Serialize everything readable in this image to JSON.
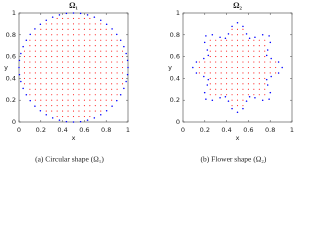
{
  "chart_data": [
    {
      "type": "scatter",
      "title": "Ω₁",
      "xlabel": "x",
      "ylabel": "y",
      "caption": "(a) Circular shape (Ω₁)",
      "xlim": [
        0,
        1
      ],
      "ylim": [
        0,
        1
      ],
      "xticks": [
        0,
        0.2,
        0.4,
        0.6,
        0.8,
        1
      ],
      "yticks": [
        0,
        0.2,
        0.4,
        0.6,
        0.8,
        1
      ],
      "series": [
        {
          "color": "#ff0000",
          "rows": [
            {
              "y": 0.05,
              "x": [
                0.35,
                0.4,
                0.45,
                0.5,
                0.55,
                0.6,
                0.65
              ]
            },
            {
              "y": 0.1,
              "x": [
                0.25,
                0.3,
                0.35,
                0.4,
                0.45,
                0.5,
                0.55,
                0.6,
                0.65,
                0.7,
                0.75
              ]
            },
            {
              "y": 0.15,
              "x": [
                0.2,
                0.25,
                0.3,
                0.35,
                0.4,
                0.45,
                0.5,
                0.55,
                0.6,
                0.65,
                0.7,
                0.75,
                0.8
              ]
            },
            {
              "y": 0.2,
              "x": [
                0.15,
                0.2,
                0.25,
                0.3,
                0.35,
                0.4,
                0.45,
                0.5,
                0.55,
                0.6,
                0.65,
                0.7,
                0.75,
                0.8,
                0.85
              ]
            },
            {
              "y": 0.25,
              "x": [
                0.1,
                0.15,
                0.2,
                0.25,
                0.3,
                0.35,
                0.4,
                0.45,
                0.5,
                0.55,
                0.6,
                0.65,
                0.7,
                0.75,
                0.8,
                0.85,
                0.9
              ]
            },
            {
              "y": 0.3,
              "x": [
                0.1,
                0.15,
                0.2,
                0.25,
                0.3,
                0.35,
                0.4,
                0.45,
                0.5,
                0.55,
                0.6,
                0.65,
                0.7,
                0.75,
                0.8,
                0.85,
                0.9
              ]
            },
            {
              "y": 0.35,
              "x": [
                0.05,
                0.1,
                0.15,
                0.2,
                0.25,
                0.3,
                0.35,
                0.4,
                0.45,
                0.5,
                0.55,
                0.6,
                0.65,
                0.7,
                0.75,
                0.8,
                0.85,
                0.9,
                0.95
              ]
            },
            {
              "y": 0.4,
              "x": [
                0.05,
                0.1,
                0.15,
                0.2,
                0.25,
                0.3,
                0.35,
                0.4,
                0.45,
                0.5,
                0.55,
                0.6,
                0.65,
                0.7,
                0.75,
                0.8,
                0.85,
                0.9,
                0.95
              ]
            },
            {
              "y": 0.45,
              "x": [
                0.05,
                0.1,
                0.15,
                0.2,
                0.25,
                0.3,
                0.35,
                0.4,
                0.45,
                0.5,
                0.55,
                0.6,
                0.65,
                0.7,
                0.75,
                0.8,
                0.85,
                0.9,
                0.95
              ]
            },
            {
              "y": 0.5,
              "x": [
                0.05,
                0.1,
                0.15,
                0.2,
                0.25,
                0.3,
                0.35,
                0.4,
                0.45,
                0.5,
                0.55,
                0.6,
                0.65,
                0.7,
                0.75,
                0.8,
                0.85,
                0.9,
                0.95
              ]
            },
            {
              "y": 0.55,
              "x": [
                0.05,
                0.1,
                0.15,
                0.2,
                0.25,
                0.3,
                0.35,
                0.4,
                0.45,
                0.5,
                0.55,
                0.6,
                0.65,
                0.7,
                0.75,
                0.8,
                0.85,
                0.9,
                0.95
              ]
            },
            {
              "y": 0.6,
              "x": [
                0.05,
                0.1,
                0.15,
                0.2,
                0.25,
                0.3,
                0.35,
                0.4,
                0.45,
                0.5,
                0.55,
                0.6,
                0.65,
                0.7,
                0.75,
                0.8,
                0.85,
                0.9,
                0.95
              ]
            },
            {
              "y": 0.65,
              "x": [
                0.05,
                0.1,
                0.15,
                0.2,
                0.25,
                0.3,
                0.35,
                0.4,
                0.45,
                0.5,
                0.55,
                0.6,
                0.65,
                0.7,
                0.75,
                0.8,
                0.85,
                0.9,
                0.95
              ]
            },
            {
              "y": 0.7,
              "x": [
                0.1,
                0.15,
                0.2,
                0.25,
                0.3,
                0.35,
                0.4,
                0.45,
                0.5,
                0.55,
                0.6,
                0.65,
                0.7,
                0.75,
                0.8,
                0.85,
                0.9
              ]
            },
            {
              "y": 0.75,
              "x": [
                0.1,
                0.15,
                0.2,
                0.25,
                0.3,
                0.35,
                0.4,
                0.45,
                0.5,
                0.55,
                0.6,
                0.65,
                0.7,
                0.75,
                0.8,
                0.85,
                0.9
              ]
            },
            {
              "y": 0.8,
              "x": [
                0.15,
                0.2,
                0.25,
                0.3,
                0.35,
                0.4,
                0.45,
                0.5,
                0.55,
                0.6,
                0.65,
                0.7,
                0.75,
                0.8,
                0.85
              ]
            },
            {
              "y": 0.85,
              "x": [
                0.2,
                0.25,
                0.3,
                0.35,
                0.4,
                0.45,
                0.5,
                0.55,
                0.6,
                0.65,
                0.7,
                0.75,
                0.8
              ]
            },
            {
              "y": 0.9,
              "x": [
                0.25,
                0.3,
                0.35,
                0.4,
                0.45,
                0.5,
                0.55,
                0.6,
                0.65,
                0.7,
                0.75
              ]
            },
            {
              "y": 0.95,
              "x": [
                0.35,
                0.4,
                0.45,
                0.5,
                0.55,
                0.6,
                0.65
              ]
            }
          ]
        },
        {
          "color": "#0000ff",
          "x": [
            1,
            0.996,
            0.983,
            0.962,
            0.933,
            0.897,
            0.854,
            0.804,
            0.75,
            0.691,
            0.629,
            0.565,
            0.5,
            0.435,
            0.371,
            0.309,
            0.25,
            0.196,
            0.146,
            0.103,
            0.067,
            0.038,
            0.017,
            0.004,
            0,
            0.004,
            0.017,
            0.038,
            0.067,
            0.103,
            0.146,
            0.196,
            0.25,
            0.309,
            0.371,
            0.435,
            0.5,
            0.565,
            0.629,
            0.691,
            0.75,
            0.804,
            0.854,
            0.897,
            0.933,
            0.962,
            0.983,
            0.996
          ],
          "values": [
            0.5,
            0.565,
            0.629,
            0.691,
            0.75,
            0.804,
            0.854,
            0.897,
            0.933,
            0.962,
            0.983,
            0.996,
            1,
            0.996,
            0.983,
            0.962,
            0.933,
            0.897,
            0.854,
            0.804,
            0.75,
            0.691,
            0.629,
            0.565,
            0.5,
            0.435,
            0.371,
            0.309,
            0.25,
            0.196,
            0.146,
            0.103,
            0.067,
            0.038,
            0.017,
            0.004,
            0,
            0.004,
            0.017,
            0.038,
            0.067,
            0.103,
            0.146,
            0.196,
            0.25,
            0.309,
            0.371,
            0.435
          ]
        }
      ]
    },
    {
      "type": "scatter",
      "title": "Ω₂",
      "xlabel": "x",
      "ylabel": "y",
      "caption": "(b) Flower shape (Ω₂)",
      "xlim": [
        0,
        1
      ],
      "ylim": [
        0,
        1
      ],
      "xticks": [
        0,
        0.2,
        0.4,
        0.6,
        0.8,
        1
      ],
      "yticks": [
        0,
        0.2,
        0.4,
        0.6,
        0.8,
        1
      ],
      "series": [
        {
          "color": "#ff0000",
          "rows": [
            {
              "y": 0.15,
              "x": [
                0.45,
                0.5,
                0.55
              ]
            },
            {
              "y": 0.2,
              "x": [
                0.45,
                0.5,
                0.55
              ]
            },
            {
              "y": 0.25,
              "x": [
                0.25,
                0.3,
                0.35,
                0.4,
                0.45,
                0.5,
                0.55,
                0.6,
                0.65,
                0.7,
                0.75
              ]
            },
            {
              "y": 0.3,
              "x": [
                0.25,
                0.3,
                0.35,
                0.4,
                0.45,
                0.5,
                0.55,
                0.6,
                0.65,
                0.7,
                0.75
              ]
            },
            {
              "y": 0.35,
              "x": [
                0.25,
                0.3,
                0.35,
                0.4,
                0.45,
                0.5,
                0.55,
                0.6,
                0.65,
                0.7,
                0.75
              ]
            },
            {
              "y": 0.4,
              "x": [
                0.25,
                0.3,
                0.35,
                0.4,
                0.45,
                0.5,
                0.55,
                0.6,
                0.65,
                0.7,
                0.75
              ]
            },
            {
              "y": 0.45,
              "x": [
                0.15,
                0.2,
                0.25,
                0.3,
                0.35,
                0.4,
                0.45,
                0.5,
                0.55,
                0.6,
                0.65,
                0.7,
                0.75,
                0.8,
                0.85
              ]
            },
            {
              "y": 0.5,
              "x": [
                0.15,
                0.2,
                0.25,
                0.3,
                0.35,
                0.4,
                0.45,
                0.5,
                0.55,
                0.6,
                0.65,
                0.7,
                0.75,
                0.8,
                0.85
              ]
            },
            {
              "y": 0.55,
              "x": [
                0.15,
                0.2,
                0.25,
                0.3,
                0.35,
                0.4,
                0.45,
                0.5,
                0.55,
                0.6,
                0.65,
                0.7,
                0.75,
                0.8,
                0.85
              ]
            },
            {
              "y": 0.6,
              "x": [
                0.25,
                0.3,
                0.35,
                0.4,
                0.45,
                0.5,
                0.55,
                0.6,
                0.65,
                0.7,
                0.75
              ]
            },
            {
              "y": 0.65,
              "x": [
                0.25,
                0.3,
                0.35,
                0.4,
                0.45,
                0.5,
                0.55,
                0.6,
                0.65,
                0.7,
                0.75
              ]
            },
            {
              "y": 0.7,
              "x": [
                0.25,
                0.3,
                0.35,
                0.4,
                0.45,
                0.5,
                0.55,
                0.6,
                0.65,
                0.7,
                0.75
              ]
            },
            {
              "y": 0.75,
              "x": [
                0.25,
                0.3,
                0.35,
                0.4,
                0.45,
                0.5,
                0.55,
                0.6,
                0.65,
                0.7,
                0.75
              ]
            },
            {
              "y": 0.8,
              "x": [
                0.45,
                0.5,
                0.55
              ]
            },
            {
              "y": 0.85,
              "x": [
                0.45,
                0.5,
                0.55
              ]
            }
          ]
        },
        {
          "color": "#0000ff",
          "x": [
            0.91,
            0.877,
            0.809,
            0.768,
            0.777,
            0.801,
            0.79,
            0.731,
            0.66,
            0.611,
            0.583,
            0.55,
            0.5,
            0.45,
            0.417,
            0.389,
            0.34,
            0.269,
            0.21,
            0.199,
            0.223,
            0.232,
            0.191,
            0.123,
            0.09,
            0.123,
            0.191,
            0.232,
            0.223,
            0.199,
            0.21,
            0.269,
            0.34,
            0.389,
            0.417,
            0.45,
            0.5,
            0.55,
            0.583,
            0.611,
            0.66,
            0.731,
            0.79,
            0.801,
            0.777,
            0.768,
            0.809,
            0.877
          ],
          "values": [
            0.5,
            0.55,
            0.583,
            0.611,
            0.66,
            0.731,
            0.79,
            0.801,
            0.777,
            0.768,
            0.809,
            0.877,
            0.91,
            0.877,
            0.809,
            0.768,
            0.777,
            0.801,
            0.79,
            0.731,
            0.66,
            0.611,
            0.583,
            0.55,
            0.5,
            0.45,
            0.417,
            0.389,
            0.34,
            0.269,
            0.21,
            0.199,
            0.223,
            0.232,
            0.191,
            0.123,
            0.09,
            0.123,
            0.191,
            0.232,
            0.223,
            0.199,
            0.21,
            0.269,
            0.34,
            0.389,
            0.417,
            0.45
          ]
        }
      ]
    }
  ]
}
